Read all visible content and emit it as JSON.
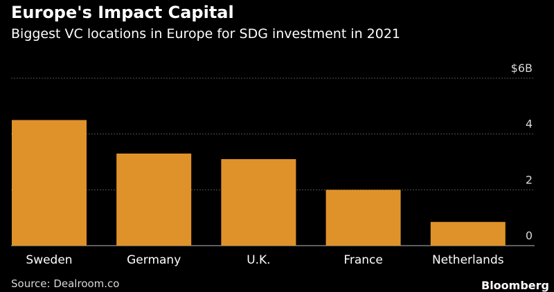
{
  "chart_data": {
    "type": "bar",
    "title": "Europe's Impact Capital",
    "subtitle": "Biggest VC locations in Europe for SDG investment in 2021",
    "categories": [
      "Sweden",
      "Germany",
      "U.K.",
      "France",
      "Netherlands"
    ],
    "values": [
      4.5,
      3.3,
      3.1,
      2.0,
      0.85
    ],
    "ylim": [
      0,
      6
    ],
    "yticks": [
      {
        "value": 6,
        "label": "$6B"
      },
      {
        "value": 4,
        "label": "4"
      },
      {
        "value": 2,
        "label": "2"
      },
      {
        "value": 0,
        "label": "0"
      }
    ],
    "grid": true,
    "bar_color": "#e0922a",
    "grid_color": "#555555",
    "xlabel": "",
    "ylabel": ""
  },
  "footer": {
    "source": "Source: Dealroom.co",
    "brand": "Bloomberg"
  }
}
